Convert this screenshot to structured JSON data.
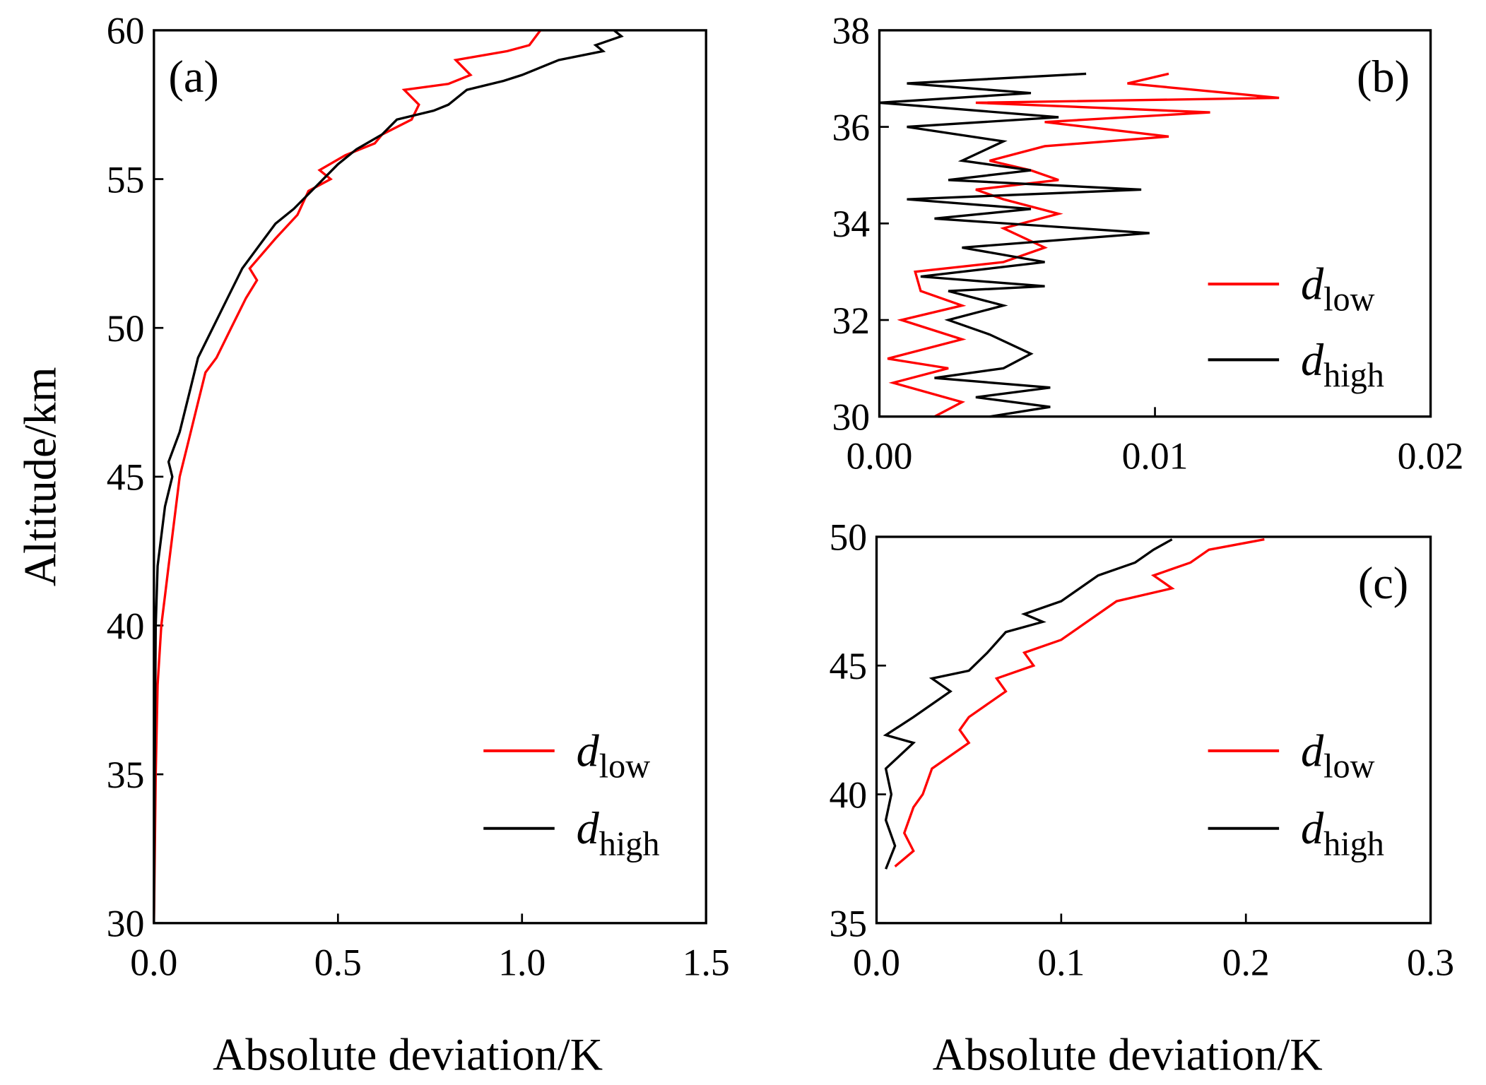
{
  "chart_data": [
    {
      "type": "line",
      "panel_label": "(a)",
      "ylabel": "Altitude/km",
      "xlabel": "Absolute deviation/K",
      "xlim": [
        0,
        1.5
      ],
      "xticks": [
        {
          "value": 0,
          "label": "0.0"
        },
        0.5,
        {
          "value": 1,
          "label": "1.0"
        },
        1.5
      ],
      "ylim": [
        30,
        60
      ],
      "yticks": [
        30,
        35,
        40,
        45,
        50,
        55,
        60
      ],
      "legend": "lower right",
      "series": [
        {
          "name": "d",
          "subscript": "low",
          "color": "#ff0000",
          "x": [
            0.0,
            0.005,
            0.01,
            0.02,
            0.03,
            0.04,
            0.06,
            0.07,
            0.09,
            0.12,
            0.14,
            0.17,
            0.21,
            0.25,
            0.28,
            0.26,
            0.33,
            0.39,
            0.42,
            0.48,
            0.45,
            0.52,
            0.6,
            0.62,
            0.7,
            0.72,
            0.68,
            0.8,
            0.86,
            0.82,
            0.96,
            1.02,
            1.05
          ],
          "y": [
            30,
            35,
            38,
            40,
            41,
            42,
            44,
            45,
            46,
            47.5,
            48.5,
            49,
            50,
            51,
            51.6,
            52,
            53,
            53.8,
            54.6,
            55,
            55.3,
            55.8,
            56.2,
            56.5,
            57,
            57.5,
            58,
            58.2,
            58.5,
            59,
            59.3,
            59.5,
            60
          ]
        },
        {
          "name": "d",
          "subscript": "high",
          "color": "#000000",
          "x": [
            0.0,
            0.002,
            0.005,
            0.01,
            0.03,
            0.05,
            0.04,
            0.07,
            0.1,
            0.12,
            0.16,
            0.2,
            0.24,
            0.3,
            0.33,
            0.38,
            0.46,
            0.5,
            0.55,
            0.62,
            0.66,
            0.76,
            0.8,
            0.85,
            0.95,
            1.0,
            1.1,
            1.22,
            1.2,
            1.27,
            1.25
          ],
          "y": [
            30,
            35,
            40,
            42,
            44,
            45,
            45.5,
            46.5,
            48,
            49,
            50,
            51,
            52,
            53,
            53.5,
            54,
            55,
            55.5,
            56,
            56.5,
            57,
            57.3,
            57.5,
            58,
            58.3,
            58.5,
            59,
            59.3,
            59.5,
            59.8,
            60
          ]
        }
      ]
    },
    {
      "type": "line",
      "panel_label": "(b)",
      "xlim": [
        0,
        0.02
      ],
      "xticks": [
        {
          "value": 0,
          "label": "0.00"
        },
        0.01,
        0.02
      ],
      "ylim": [
        30,
        38
      ],
      "yticks": [
        30,
        32,
        34,
        36,
        38
      ],
      "legend": "center right",
      "series": [
        {
          "name": "d",
          "subscript": "low",
          "color": "#ff0000",
          "x": [
            0.002,
            0.003,
            0.0005,
            0.0025,
            0.0003,
            0.003,
            0.0008,
            0.003,
            0.0015,
            0.0013,
            0.0045,
            0.006,
            0.0045,
            0.0065,
            0.0045,
            0.0035,
            0.0065,
            0.0055,
            0.004,
            0.006,
            0.0105,
            0.006,
            0.012,
            0.0035,
            0.0145,
            0.009,
            0.0105
          ],
          "y": [
            30,
            30.3,
            30.7,
            31,
            31.2,
            31.6,
            32,
            32.3,
            32.6,
            33,
            33.2,
            33.5,
            33.9,
            34.2,
            34.5,
            34.7,
            34.9,
            35.1,
            35.3,
            35.6,
            35.8,
            36.1,
            36.3,
            36.5,
            36.6,
            36.9,
            37.1
          ]
        },
        {
          "name": "d",
          "subscript": "high",
          "color": "#000000",
          "x": [
            0.004,
            0.0062,
            0.0035,
            0.0062,
            0.002,
            0.0045,
            0.0055,
            0.004,
            0.0025,
            0.0045,
            0.0025,
            0.006,
            0.0015,
            0.006,
            0.003,
            0.0098,
            0.002,
            0.0055,
            0.001,
            0.0095,
            0.0025,
            0.0055,
            0.003,
            0.0045,
            0.001,
            0.0065,
            0.0,
            0.0055,
            0.001,
            0.0075
          ],
          "y": [
            30,
            30.2,
            30.4,
            30.6,
            30.8,
            31,
            31.3,
            31.7,
            32,
            32.3,
            32.6,
            32.7,
            32.9,
            33.2,
            33.5,
            33.8,
            34.1,
            34.3,
            34.5,
            34.7,
            34.9,
            35.1,
            35.3,
            35.7,
            36,
            36.2,
            36.5,
            36.7,
            36.9,
            37.1
          ]
        }
      ]
    },
    {
      "type": "line",
      "panel_label": "(c)",
      "xlabel": "Absolute deviation/K",
      "xlim": [
        0,
        0.3
      ],
      "xticks": [
        {
          "value": 0,
          "label": "0.0"
        },
        0.1,
        0.2,
        0.3
      ],
      "ylim": [
        35,
        50
      ],
      "yticks": [
        35,
        40,
        45,
        50
      ],
      "legend": "lower right",
      "series": [
        {
          "name": "d",
          "subscript": "low",
          "color": "#ff0000",
          "x": [
            0.01,
            0.02,
            0.015,
            0.02,
            0.025,
            0.03,
            0.05,
            0.045,
            0.05,
            0.07,
            0.065,
            0.085,
            0.08,
            0.1,
            0.11,
            0.13,
            0.16,
            0.15,
            0.17,
            0.18,
            0.21
          ],
          "y": [
            37.2,
            37.8,
            38.5,
            39.5,
            40,
            41,
            42,
            42.5,
            43,
            44,
            44.5,
            45,
            45.5,
            46,
            46.5,
            47.5,
            48,
            48.5,
            49,
            49.5,
            49.9
          ]
        },
        {
          "name": "d",
          "subscript": "high",
          "color": "#000000",
          "x": [
            0.005,
            0.01,
            0.005,
            0.008,
            0.005,
            0.02,
            0.005,
            0.02,
            0.04,
            0.03,
            0.05,
            0.06,
            0.07,
            0.09,
            0.08,
            0.1,
            0.11,
            0.12,
            0.14,
            0.15,
            0.16
          ],
          "y": [
            37.1,
            38,
            39,
            40,
            41,
            42,
            42.3,
            43,
            44,
            44.5,
            44.8,
            45.5,
            46.3,
            46.7,
            47,
            47.5,
            48,
            48.5,
            49,
            49.5,
            49.9
          ]
        }
      ]
    }
  ]
}
